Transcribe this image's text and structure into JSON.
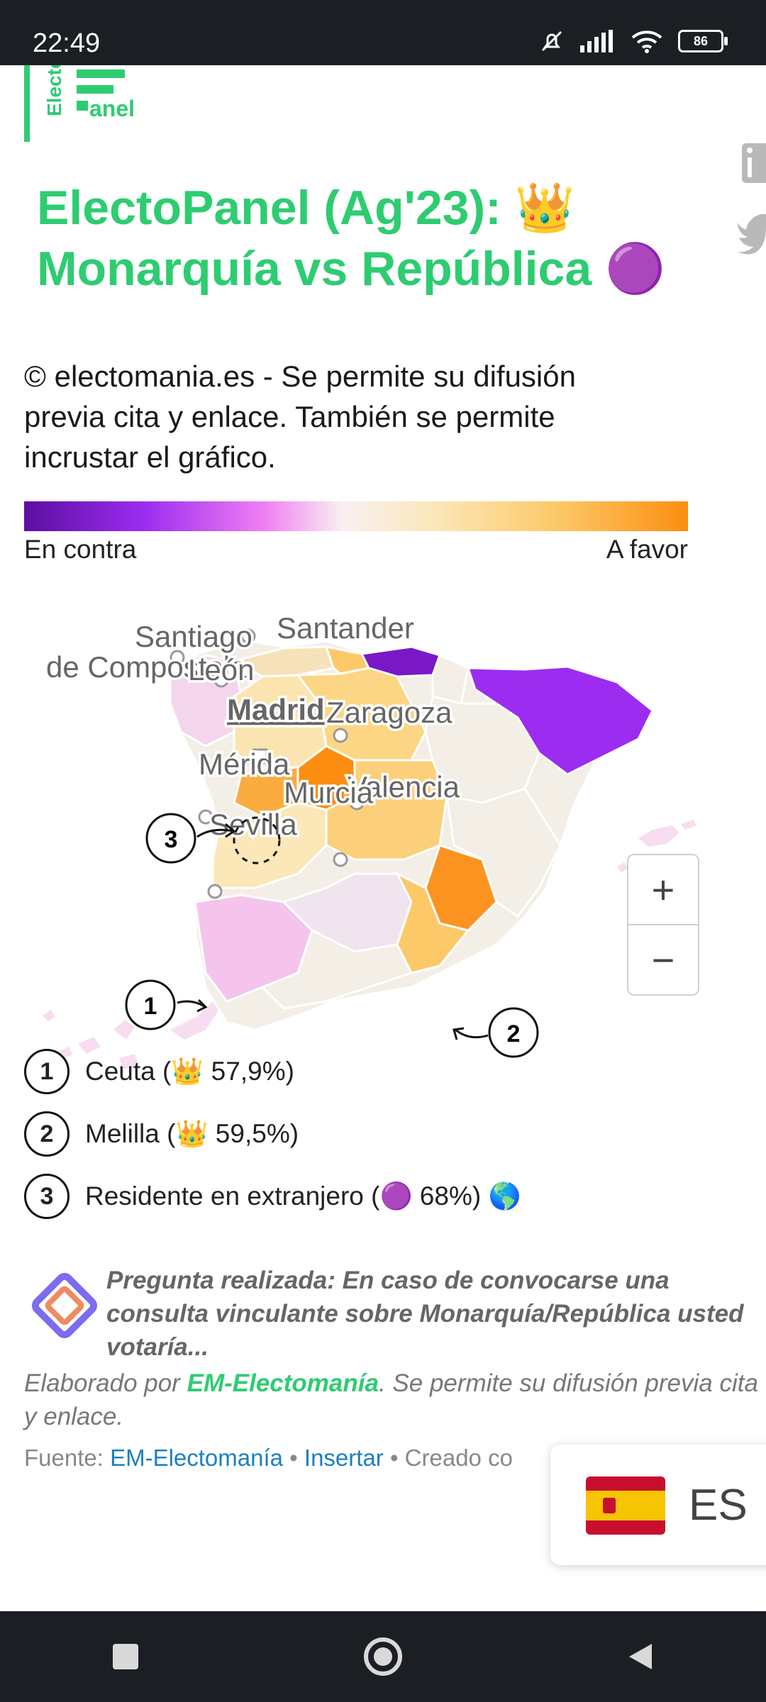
{
  "status_bar": {
    "time": "22:49",
    "battery": "86"
  },
  "article": {
    "logo_text": "Electo",
    "logo_text2": "anel",
    "title_line1": "ElectoPanel (Ag'23): 👑",
    "title_line2": "Monarquía vs República 🟣",
    "copyright": "© electomania.es - Se permite su difusión previa cita y enlace. También se permite incrustar el gráfico."
  },
  "legend": {
    "left": "En contra",
    "right": "A favor"
  },
  "map": {
    "cities": {
      "santiago_1": "Santiago",
      "santiago_2": "de Compostela",
      "leon": "León",
      "santander": "Santander",
      "madrid": "Madrid",
      "zaragoza": "Zaragoza",
      "merida": "Mérida",
      "valencia": "Valencia",
      "murcia": "Murcia",
      "sevilla": "Sevilla"
    },
    "markers": {
      "m1": "1",
      "m2": "2",
      "m3": "3"
    },
    "colors": {
      "against": "#5c0fa0",
      "favor": "#fb8e10",
      "neutral": "#f3eee6"
    }
  },
  "zoom": {
    "in": "+",
    "out": "−"
  },
  "notes": [
    {
      "num": "1",
      "text": "Ceuta (👑 57,9%)"
    },
    {
      "num": "2",
      "text": "Melilla (👑 59,5%)"
    },
    {
      "num": "3",
      "text": "Residente en extranjero (🟣 68%)  🌎"
    }
  ],
  "question": "Pregunta realizada: En caso de convocarse una consulta vinculante sobre Monarquía/República usted votaría...",
  "credit": {
    "prefix": "Elaborado por ",
    "brand": "EM-Electomanía",
    "suffix": ". Se permite su difusión previa cita y enlace."
  },
  "source": {
    "label": "Fuente: ",
    "link1": "EM-Electomanía",
    "sep": " • ",
    "link2": "Insertar",
    "created": " • Creado co"
  },
  "language": {
    "code": "ES"
  }
}
